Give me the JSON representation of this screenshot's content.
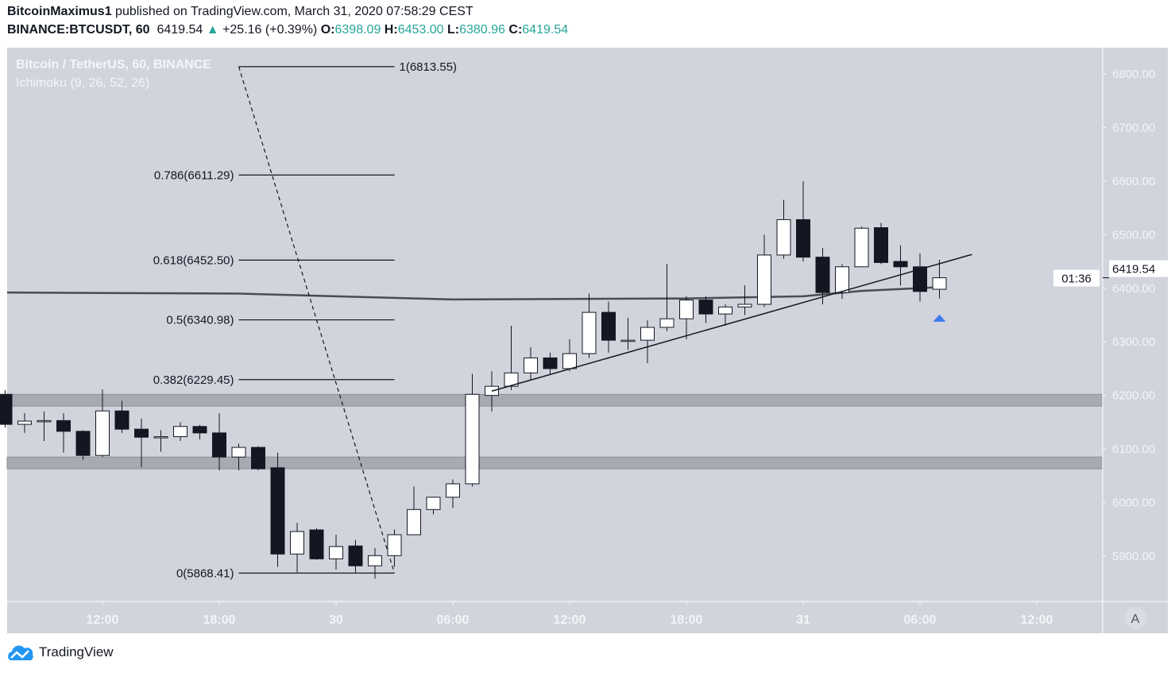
{
  "header": {
    "author": "BitcoinMaximus1",
    "published": "published on TradingView.com, March 31, 2020 07:58:29 CEST",
    "symbol": "BINANCE:BTCUSDT, 60",
    "last": "6419.54",
    "change": "+25.16 (+0.39%)",
    "o_label": "O:",
    "o": "6398.09",
    "h_label": "H:",
    "h": "6453.00",
    "l_label": "L:",
    "l": "6380.96",
    "c_label": "C:",
    "c": "6419.54"
  },
  "legend": {
    "title": "Bitcoin / TetherUS, 60, BINANCE",
    "indicator": "Ichimoku (9, 26, 52, 26)"
  },
  "price_label": "6419.54",
  "countdown": "01:36",
  "axis_mode_button": "A",
  "footer": {
    "brand": "TradingView"
  },
  "colors": {
    "up": "#ffffff",
    "down": "#131722",
    "background": "#d1d4dc",
    "accent": "#26a69a",
    "marker": "#2962ff"
  },
  "chart_data": {
    "type": "candlestick",
    "interval": "60",
    "ylim": [
      5830,
      6895
    ],
    "y_ticks": [
      "5900.00",
      "6000.00",
      "6100.00",
      "6200.00",
      "6300.00",
      "6400.00",
      "6500.00",
      "6600.00",
      "6700.00",
      "6800.00"
    ],
    "x_ticks": [
      {
        "t": "29 12:00",
        "label": "12:00"
      },
      {
        "t": "29 18:00",
        "label": "18:00"
      },
      {
        "t": "30 00:00",
        "label": "30"
      },
      {
        "t": "30 06:00",
        "label": "06:00"
      },
      {
        "t": "30 12:00",
        "label": "12:00"
      },
      {
        "t": "30 18:00",
        "label": "18:00"
      },
      {
        "t": "31 00:00",
        "label": "31"
      },
      {
        "t": "31 06:00",
        "label": "06:00"
      },
      {
        "t": "31 12:00",
        "label": "12:00"
      }
    ],
    "candles_columns": [
      "time",
      "open",
      "high",
      "low",
      "close"
    ],
    "candles": [
      [
        "29 07:00",
        6202,
        6210,
        6140,
        6146
      ],
      [
        "29 08:00",
        6146,
        6167,
        6130,
        6152
      ],
      [
        "29 09:00",
        6152,
        6170,
        6115,
        6153
      ],
      [
        "29 10:00",
        6153,
        6167,
        6093,
        6133
      ],
      [
        "29 11:00",
        6133,
        6135,
        6080,
        6088
      ],
      [
        "29 12:00",
        6088,
        6211,
        6085,
        6171
      ],
      [
        "29 13:00",
        6171,
        6190,
        6130,
        6137
      ],
      [
        "29 14:00",
        6137,
        6157,
        6066,
        6122
      ],
      [
        "29 15:00",
        6122,
        6135,
        6095,
        6123
      ],
      [
        "29 16:00",
        6123,
        6150,
        6115,
        6142
      ],
      [
        "29 17:00",
        6142,
        6145,
        6118,
        6130
      ],
      [
        "29 18:00",
        6130,
        6167,
        6060,
        6085
      ],
      [
        "29 19:00",
        6085,
        6110,
        6060,
        6103
      ],
      [
        "29 20:00",
        6103,
        6105,
        6060,
        6063
      ],
      [
        "29 21:00",
        6065,
        6093,
        5880,
        5904
      ],
      [
        "29 22:00",
        5904,
        5962,
        5870,
        5946
      ],
      [
        "29 23:00",
        5949,
        5952,
        5893,
        5895
      ],
      [
        "30 00:00",
        5895,
        5940,
        5875,
        5918
      ],
      [
        "30 01:00",
        5919,
        5930,
        5868,
        5882
      ],
      [
        "30 02:00",
        5882,
        5915,
        5858,
        5901
      ],
      [
        "30 03:00",
        5901,
        5950,
        5880,
        5940
      ],
      [
        "30 04:00",
        5940,
        6030,
        5940,
        5987
      ],
      [
        "30 05:00",
        5987,
        6010,
        5978,
        6010
      ],
      [
        "30 06:00",
        6010,
        6043,
        5990,
        6035
      ],
      [
        "30 07:00",
        6035,
        6240,
        6030,
        6202
      ],
      [
        "30 08:00",
        6200,
        6245,
        6170,
        6217
      ],
      [
        "30 09:00",
        6217,
        6330,
        6210,
        6242
      ],
      [
        "30 10:00",
        6242,
        6290,
        6230,
        6270
      ],
      [
        "30 11:00",
        6270,
        6280,
        6240,
        6250
      ],
      [
        "30 12:00",
        6250,
        6305,
        6245,
        6278
      ],
      [
        "30 13:00",
        6278,
        6390,
        6270,
        6355
      ],
      [
        "30 14:00",
        6355,
        6375,
        6280,
        6303
      ],
      [
        "30 15:00",
        6303,
        6345,
        6285,
        6303
      ],
      [
        "30 16:00",
        6303,
        6340,
        6260,
        6327
      ],
      [
        "30 17:00",
        6327,
        6445,
        6320,
        6343
      ],
      [
        "30 18:00",
        6343,
        6385,
        6305,
        6378
      ],
      [
        "30 19:00",
        6378,
        6385,
        6335,
        6352
      ],
      [
        "30 20:00",
        6352,
        6370,
        6330,
        6365
      ],
      [
        "30 21:00",
        6365,
        6405,
        6350,
        6370
      ],
      [
        "30 22:00",
        6370,
        6500,
        6365,
        6462
      ],
      [
        "30 23:00",
        6462,
        6565,
        6455,
        6528
      ],
      [
        "31 00:00",
        6528,
        6600,
        6450,
        6458
      ],
      [
        "31 01:00",
        6458,
        6475,
        6370,
        6392
      ],
      [
        "31 02:00",
        6392,
        6445,
        6380,
        6440
      ],
      [
        "31 03:00",
        6440,
        6515,
        6440,
        6512
      ],
      [
        "31 04:00",
        6513,
        6522,
        6445,
        6448
      ],
      [
        "31 05:00",
        6450,
        6480,
        6405,
        6440
      ],
      [
        "31 06:00",
        6440,
        6465,
        6375,
        6394
      ],
      [
        "31 07:00",
        6398.09,
        6453,
        6380.96,
        6419.54
      ]
    ],
    "moving_line": [
      [
        "29 07:00",
        6392
      ],
      [
        "29 19:00",
        6390
      ],
      [
        "30 06:00",
        6379
      ],
      [
        "30 18:00",
        6381
      ],
      [
        "31 00:00",
        6385
      ],
      [
        "31 03:00",
        6395
      ],
      [
        "31 07:00",
        6402
      ]
    ],
    "support_zones": [
      [
        6180,
        6202
      ],
      [
        6063,
        6085
      ]
    ],
    "trendline": [
      [
        "30 08:00",
        6208
      ],
      [
        "31 08:40",
        6463
      ]
    ],
    "fibonacci": {
      "from": "29 19:00",
      "to": "30 03:00",
      "levels": [
        {
          "label": "1(6813.55)",
          "price": 6813.55
        },
        {
          "label": "0.786(6611.29)",
          "price": 6611.29
        },
        {
          "label": "0.618(6452.50)",
          "price": 6452.5
        },
        {
          "label": "0.5(6340.98)",
          "price": 6340.98
        },
        {
          "label": "0.382(6229.45)",
          "price": 6229.45
        },
        {
          "label": "0(5868.41)",
          "price": 5868.41
        }
      ]
    },
    "marker": {
      "t": "31 07:00",
      "price": 6345,
      "shape": "triangle-up"
    }
  }
}
